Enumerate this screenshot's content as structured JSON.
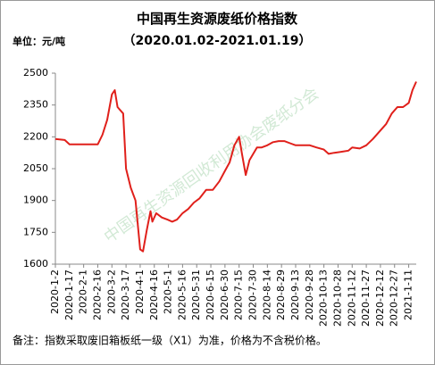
{
  "chart_data": {
    "type": "line",
    "title": "中国再生资源废纸价格指数",
    "subtitle": "（2020.01.02-2021.01.19）",
    "unit_label": "单位：元/吨",
    "watermark": "中国再生资源回收利用协会废纸分会",
    "note": "备注：指数采取废旧箱板纸一级（X1）为准，价格为不含税价格。",
    "x": [
      "2020-1-2",
      "2020-1-12",
      "2020-1-17",
      "2020-1-22",
      "2020-2-1",
      "2020-2-11",
      "2020-2-16",
      "2020-2-21",
      "2020-2-26",
      "2020-3-2",
      "2020-3-5",
      "2020-3-8",
      "2020-3-14",
      "2020-3-17",
      "2020-3-22",
      "2020-3-27",
      "2020-4-1",
      "2020-4-4",
      "2020-4-8",
      "2020-4-12",
      "2020-4-14",
      "2020-4-18",
      "2020-4-24",
      "2020-4-30",
      "2020-5-5",
      "2020-5-10",
      "2020-5-16",
      "2020-5-22",
      "2020-5-28",
      "2020-6-3",
      "2020-6-10",
      "2020-6-17",
      "2020-6-24",
      "2020-6-30",
      "2020-7-5",
      "2020-7-10",
      "2020-7-15",
      "2020-7-18",
      "2020-7-22",
      "2020-7-26",
      "2020-7-30",
      "2020-8-3",
      "2020-8-8",
      "2020-8-14",
      "2020-8-20",
      "2020-8-26",
      "2020-9-1",
      "2020-9-7",
      "2020-9-13",
      "2020-9-20",
      "2020-9-28",
      "2020-10-5",
      "2020-10-13",
      "2020-10-18",
      "2020-10-24",
      "2020-11-1",
      "2020-11-8",
      "2020-11-12",
      "2020-11-20",
      "2020-11-27",
      "2020-12-4",
      "2020-12-12",
      "2020-12-18",
      "2020-12-24",
      "2020-12-30",
      "2021-1-5",
      "2021-1-11",
      "2021-1-15",
      "2021-1-19"
    ],
    "series": [
      {
        "name": "废纸价格指数",
        "color": "#e0201b",
        "values": [
          2190,
          2185,
          2165,
          2165,
          2165,
          2165,
          2165,
          2210,
          2280,
          2400,
          2420,
          2340,
          2310,
          2050,
          1960,
          1900,
          1670,
          1660,
          1760,
          1850,
          1800,
          1840,
          1820,
          1810,
          1800,
          1810,
          1840,
          1860,
          1890,
          1910,
          1950,
          1950,
          1990,
          2040,
          2080,
          2160,
          2200,
          2120,
          2020,
          2090,
          2120,
          2150,
          2150,
          2160,
          2175,
          2180,
          2180,
          2170,
          2160,
          2160,
          2160,
          2150,
          2140,
          2120,
          2125,
          2130,
          2135,
          2150,
          2145,
          2160,
          2190,
          2230,
          2260,
          2310,
          2340,
          2340,
          2360,
          2420,
          2460
        ]
      }
    ],
    "xticks": [
      "2020-1-2",
      "2020-1-17",
      "2020-2-1",
      "2020-2-16",
      "2020-3-2",
      "2020-3-17",
      "2020-4-1",
      "2020-4-16",
      "2020-5-1",
      "2020-5-16",
      "2020-5-31",
      "2020-6-15",
      "2020-6-30",
      "2020-7-15",
      "2020-7-30",
      "2020-8-14",
      "2020-8-29",
      "2020-9-13",
      "2020-9-28",
      "2020-10-13",
      "2020-10-28",
      "2020-11-12",
      "2020-11-27",
      "2020-12-12",
      "2020-12-27",
      "2021-1-11"
    ],
    "ylim": [
      1600,
      2500
    ],
    "yticks": [
      1600,
      1750,
      1900,
      2050,
      2200,
      2350,
      2500
    ],
    "grid": false
  }
}
